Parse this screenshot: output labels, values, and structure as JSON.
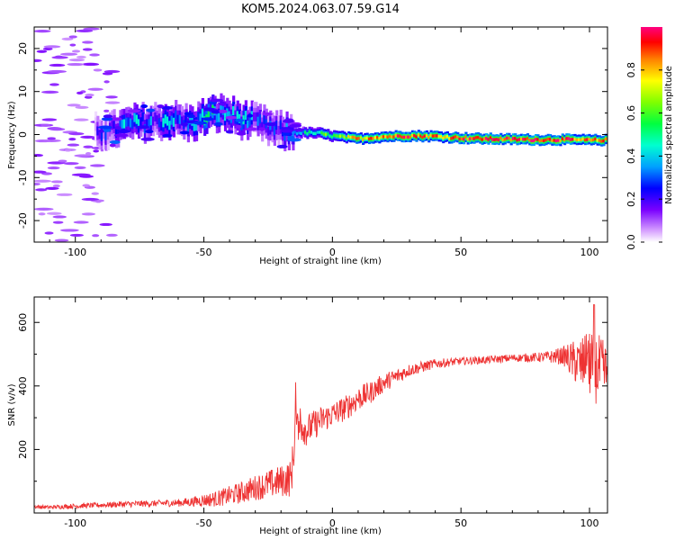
{
  "title": "KOM5.2024.063.07.59.G14",
  "chart_data": [
    {
      "type": "heatmap",
      "xlabel": "Height of straight line (km)",
      "ylabel": "Frequency (Hz)",
      "xlim": [
        -116,
        107
      ],
      "ylim": [
        -25,
        25
      ],
      "xticks": [
        -100,
        -50,
        0,
        50,
        100
      ],
      "yticks": [
        -20,
        -10,
        0,
        10,
        20
      ],
      "xtick_labels": [
        "-100",
        "-50",
        "0",
        "50",
        "100"
      ],
      "ytick_labels": [
        "-20",
        "-10",
        "0",
        "10",
        "20"
      ],
      "colorbar": {
        "label": "Normalized spectral amplitude",
        "range": [
          0,
          1
        ],
        "ticks": [
          0.0,
          0.2,
          0.4,
          0.6,
          0.8
        ],
        "tick_labels": [
          "0.0",
          "0.2",
          "0.4",
          "0.6",
          "0.8"
        ]
      },
      "ridge": {
        "x": [
          -92,
          -85,
          -78,
          -70,
          -62,
          -55,
          -48,
          -42,
          -35,
          -28,
          -22,
          -16,
          -10,
          -5,
          0,
          10,
          20,
          30,
          40,
          50,
          60,
          70,
          80,
          90,
          100,
          107
        ],
        "freq": [
          0.5,
          1.0,
          2.5,
          3.0,
          3.5,
          2.5,
          4.5,
          5.0,
          3.5,
          2.5,
          1.0,
          0.5,
          0.4,
          0.3,
          -0.3,
          -1.0,
          -0.5,
          -0.3,
          -0.4,
          -0.8,
          -1.0,
          -1.1,
          -1.2,
          -1.2,
          -1.3,
          -1.3
        ],
        "amplitude": [
          0.15,
          0.25,
          0.4,
          0.3,
          0.35,
          0.3,
          0.45,
          0.4,
          0.35,
          0.25,
          0.2,
          0.3,
          0.45,
          0.5,
          0.6,
          0.8,
          0.85,
          0.9,
          0.85,
          0.9,
          0.95,
          0.9,
          0.95,
          0.9,
          0.85,
          0.8
        ]
      },
      "note_scatter_region": [
        -116,
        -85
      ]
    },
    {
      "type": "line",
      "xlabel": "Height of straight line (km)",
      "ylabel": "SNR (v/v)",
      "xlim": [
        -116,
        107
      ],
      "ylim": [
        0,
        680
      ],
      "xticks": [
        -100,
        -50,
        0,
        50,
        100
      ],
      "yticks": [
        200,
        400,
        600
      ],
      "xtick_labels": [
        "-100",
        "-50",
        "0",
        "50",
        "100"
      ],
      "ytick_labels": [
        "200",
        "400",
        "600"
      ],
      "color": "#ee3333",
      "series": [
        {
          "x": [
            -116,
            -110,
            -100,
            -90,
            -80,
            -70,
            -60,
            -55,
            -50,
            -45,
            -40,
            -35,
            -30,
            -25,
            -20,
            -16,
            -14,
            -12,
            -10,
            -5,
            0,
            5,
            10,
            15,
            20,
            25,
            30,
            40,
            50,
            60,
            70,
            80,
            85,
            90,
            93,
            96,
            100,
            104,
            107
          ],
          "y": [
            20,
            18,
            22,
            25,
            28,
            30,
            32,
            35,
            40,
            45,
            55,
            65,
            80,
            90,
            100,
            110,
            300,
            280,
            260,
            290,
            310,
            330,
            360,
            380,
            410,
            430,
            450,
            470,
            478,
            482,
            488,
            490,
            492,
            495,
            480,
            470,
            460,
            450,
            440
          ],
          "noise": [
            6,
            6,
            8,
            8,
            10,
            10,
            12,
            15,
            20,
            25,
            30,
            35,
            40,
            45,
            50,
            60,
            80,
            60,
            50,
            45,
            40,
            40,
            40,
            35,
            30,
            25,
            20,
            15,
            12,
            12,
            12,
            15,
            20,
            30,
            60,
            80,
            110,
            110,
            90
          ]
        }
      ]
    }
  ]
}
